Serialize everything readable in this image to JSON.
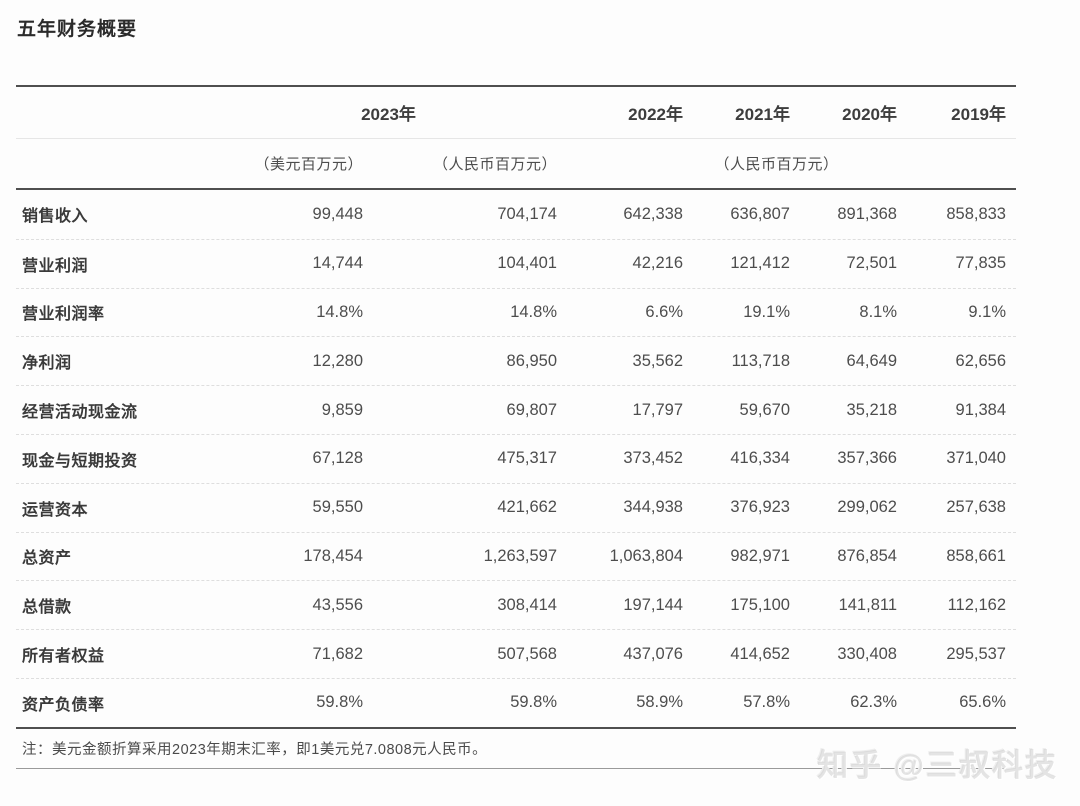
{
  "page": {
    "title": "五年财务概要",
    "note": "注：美元金额折算采用2023年期末汇率，即1美元兑7.0808元人民币。",
    "watermark": "知乎 @三叔科技"
  },
  "table": {
    "year_headers": {
      "y2023": "2023年",
      "y2022": "2022年",
      "y2021": "2021年",
      "y2020": "2020年",
      "y2019": "2019年"
    },
    "unit_headers": {
      "usd_2023": "（美元百万元）",
      "rmb_2023": "（人民币百万元）",
      "rmb_group": "（人民币百万元）"
    },
    "rows": [
      {
        "label": "销售收入",
        "usd_2023": "99,448",
        "rmb_2023": "704,174",
        "y2022": "642,338",
        "y2021": "636,807",
        "y2020": "891,368",
        "y2019": "858,833"
      },
      {
        "label": "营业利润",
        "usd_2023": "14,744",
        "rmb_2023": "104,401",
        "y2022": "42,216",
        "y2021": "121,412",
        "y2020": "72,501",
        "y2019": "77,835"
      },
      {
        "label": "营业利润率",
        "usd_2023": "14.8%",
        "rmb_2023": "14.8%",
        "y2022": "6.6%",
        "y2021": "19.1%",
        "y2020": "8.1%",
        "y2019": "9.1%"
      },
      {
        "label": "净利润",
        "usd_2023": "12,280",
        "rmb_2023": "86,950",
        "y2022": "35,562",
        "y2021": "113,718",
        "y2020": "64,649",
        "y2019": "62,656"
      },
      {
        "label": "经营活动现金流",
        "usd_2023": "9,859",
        "rmb_2023": "69,807",
        "y2022": "17,797",
        "y2021": "59,670",
        "y2020": "35,218",
        "y2019": "91,384"
      },
      {
        "label": "现金与短期投资",
        "usd_2023": "67,128",
        "rmb_2023": "475,317",
        "y2022": "373,452",
        "y2021": "416,334",
        "y2020": "357,366",
        "y2019": "371,040"
      },
      {
        "label": "运营资本",
        "usd_2023": "59,550",
        "rmb_2023": "421,662",
        "y2022": "344,938",
        "y2021": "376,923",
        "y2020": "299,062",
        "y2019": "257,638"
      },
      {
        "label": "总资产",
        "usd_2023": "178,454",
        "rmb_2023": "1,263,597",
        "y2022": "1,063,804",
        "y2021": "982,971",
        "y2020": "876,854",
        "y2019": "858,661"
      },
      {
        "label": "总借款",
        "usd_2023": "43,556",
        "rmb_2023": "308,414",
        "y2022": "197,144",
        "y2021": "175,100",
        "y2020": "141,811",
        "y2019": "112,162"
      },
      {
        "label": "所有者权益",
        "usd_2023": "71,682",
        "rmb_2023": "507,568",
        "y2022": "437,076",
        "y2021": "414,652",
        "y2020": "330,408",
        "y2019": "295,537"
      },
      {
        "label": "资产负债率",
        "usd_2023": "59.8%",
        "rmb_2023": "59.8%",
        "y2022": "58.9%",
        "y2021": "57.8%",
        "y2020": "62.3%",
        "y2019": "65.6%"
      }
    ]
  },
  "colors": {
    "table_border_dark": "#4f4f4f",
    "row_separator": "#dedede",
    "label_text": "#3a3a3a",
    "number_text": "#4d4d4d",
    "watermark_text": "#cdcdcd",
    "background": "#fdfdfd"
  }
}
